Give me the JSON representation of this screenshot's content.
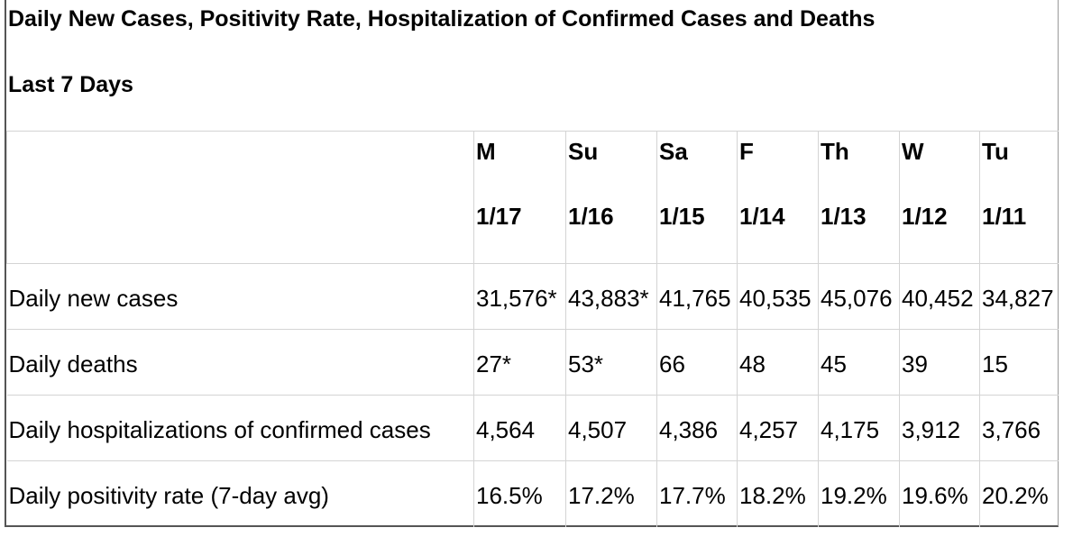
{
  "title": "Daily New Cases, Positivity Rate, Hospitalization of Confirmed Cases and Deaths",
  "subtitle": "Last 7 Days",
  "columns": [
    {
      "day": "M",
      "date": "1/17"
    },
    {
      "day": "Su",
      "date": "1/16"
    },
    {
      "day": "Sa",
      "date": "1/15"
    },
    {
      "day": "F",
      "date": "1/14"
    },
    {
      "day": "Th",
      "date": "1/13"
    },
    {
      "day": "W",
      "date": "1/12"
    },
    {
      "day": "Tu",
      "date": "1/11"
    }
  ],
  "rows": [
    {
      "label": "Daily new cases",
      "values": [
        "31,576*",
        "43,883*",
        "41,765",
        "40,535",
        "45,076",
        "40,452",
        "34,827"
      ]
    },
    {
      "label": "Daily deaths",
      "values": [
        "27*",
        "53*",
        "66",
        "48",
        "45",
        "39",
        "15"
      ]
    },
    {
      "label": "Daily hospitalizations of confirmed cases",
      "values": [
        "4,564",
        "4,507",
        "4,386",
        "4,257",
        "4,175",
        "3,912",
        "3,766"
      ]
    },
    {
      "label": "Daily positivity rate (7-day avg)",
      "values": [
        "16.5%",
        "17.2%",
        "17.7%",
        "18.2%",
        "19.2%",
        "19.6%",
        "20.2%"
      ]
    }
  ]
}
